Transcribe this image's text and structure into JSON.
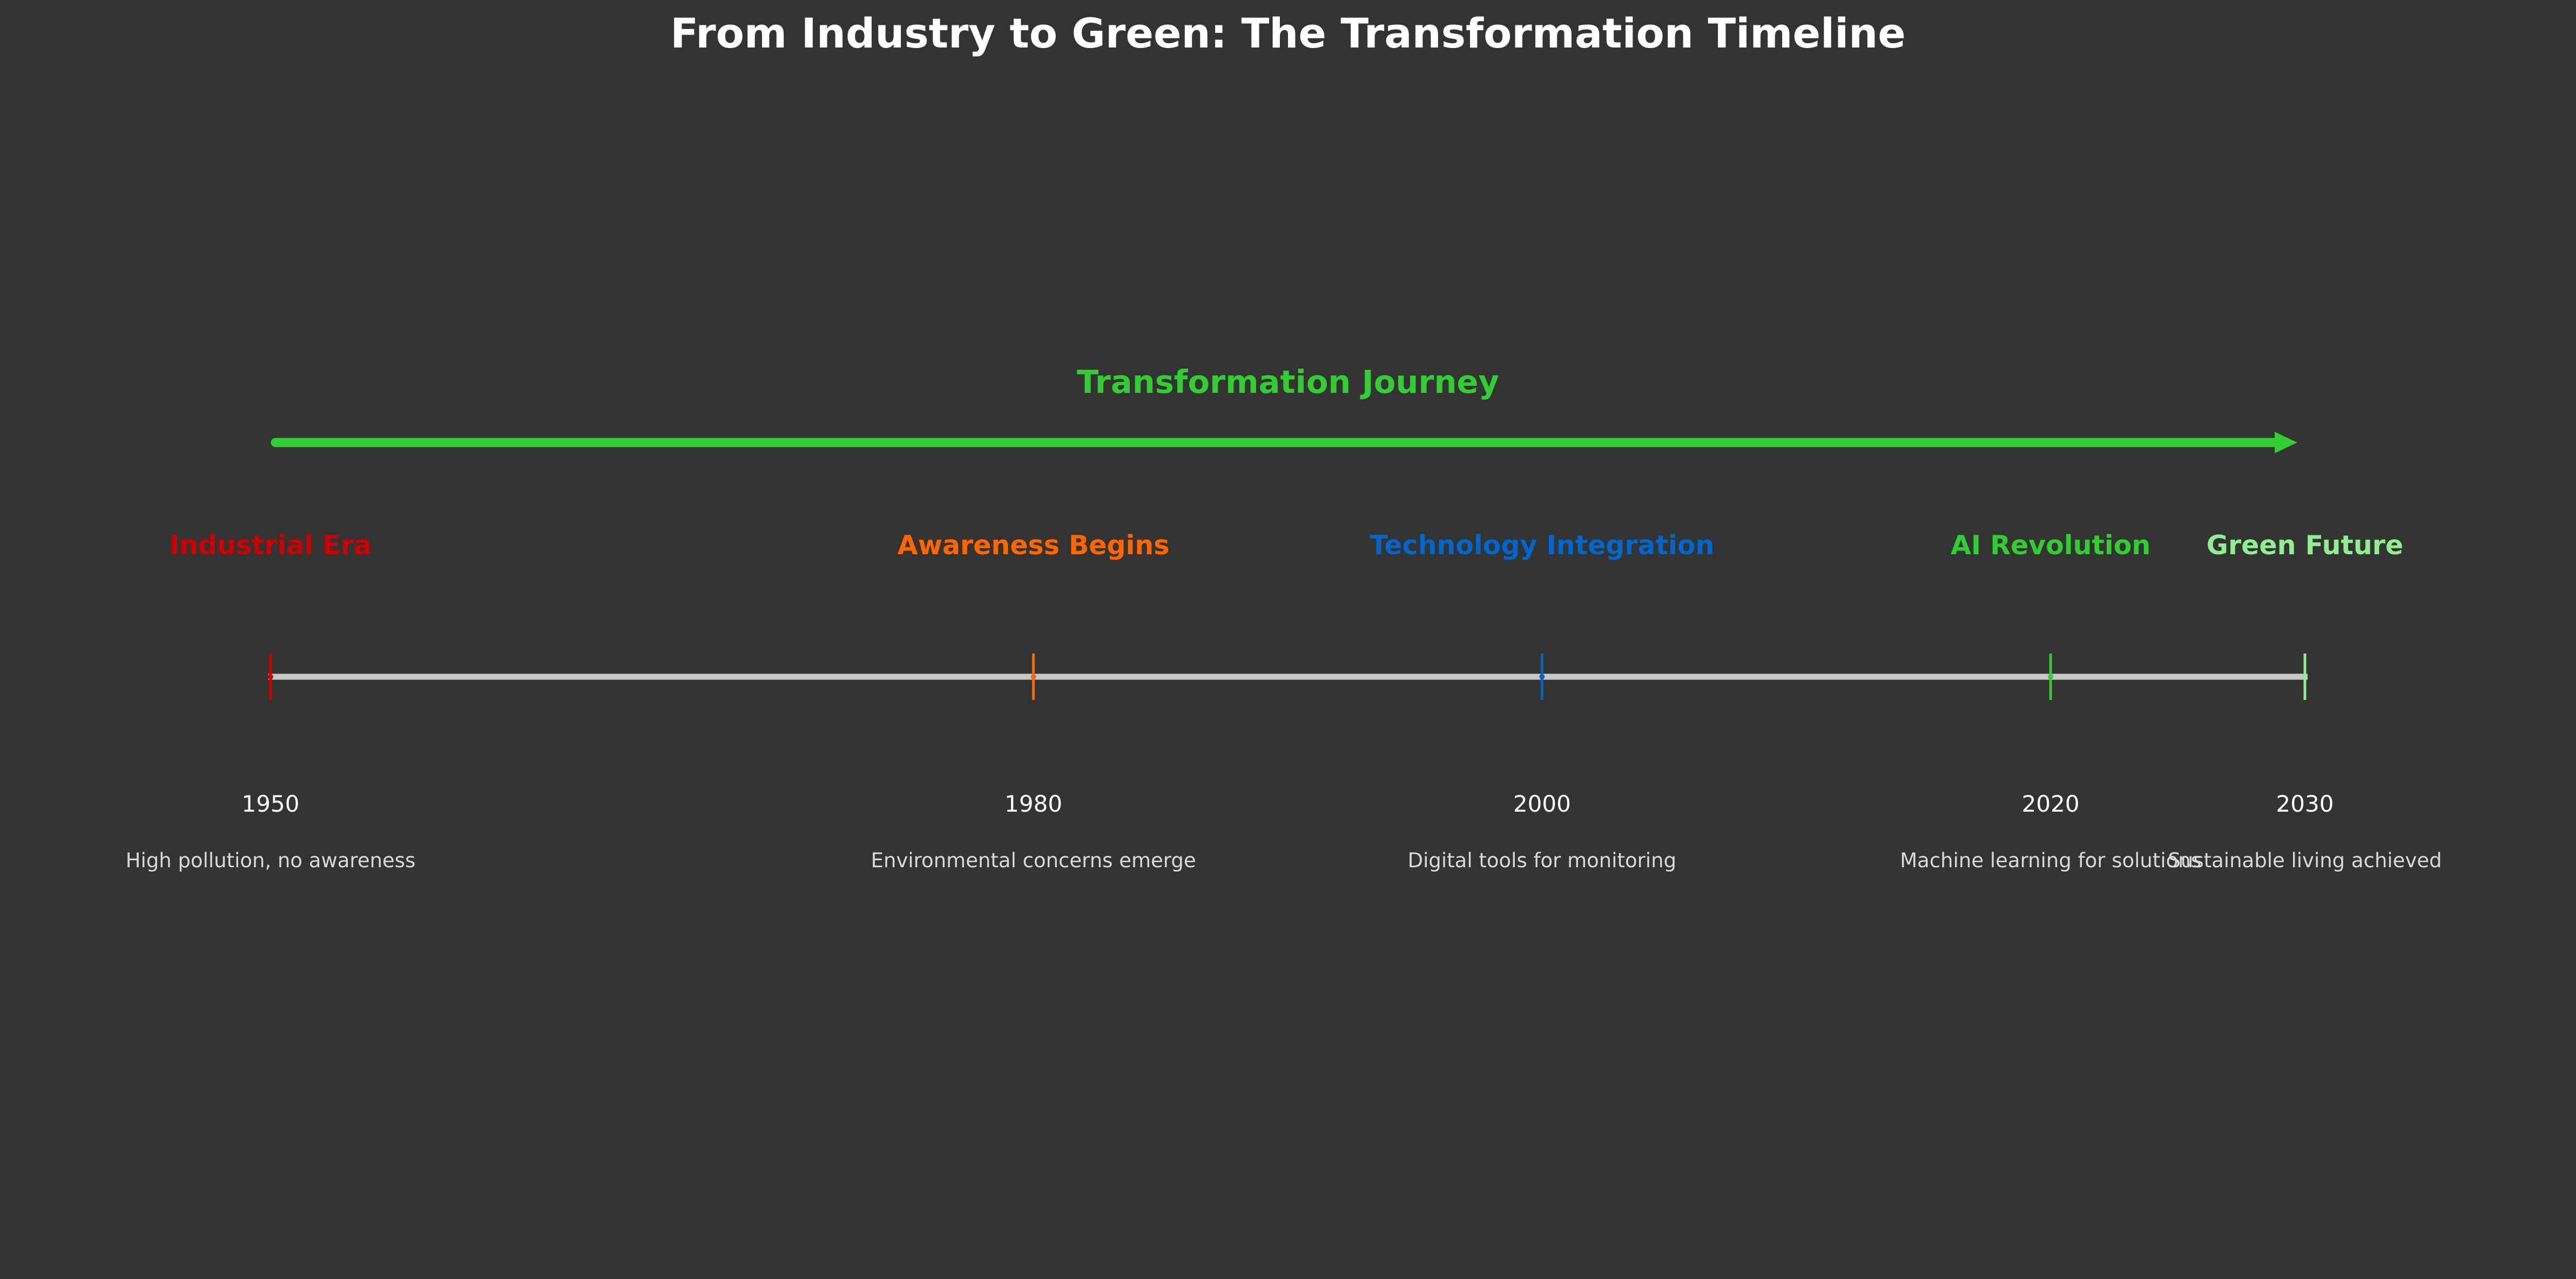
{
  "title": "From Industry to Green: The Transformation Timeline",
  "journey_label": "Transformation Journey",
  "colors": {
    "background": "#333333",
    "timeline": "#c8c8c8",
    "journey_arrow": "#33cc33"
  },
  "events": [
    {
      "year": "1950",
      "title": "Industrial Era",
      "description": "High pollution, no awareness",
      "color": "#cc0000"
    },
    {
      "year": "1980",
      "title": "Awareness Begins",
      "description": "Environmental concerns emerge",
      "color": "#ff6600"
    },
    {
      "year": "2000",
      "title": "Technology Integration",
      "description": "Digital tools for monitoring",
      "color": "#0066cc"
    },
    {
      "year": "2020",
      "title": "AI Revolution",
      "description": "Machine learning for solutions",
      "color": "#33cc33"
    },
    {
      "year": "2030",
      "title": "Green Future",
      "description": "Sustainable living achieved",
      "color": "#90ee90"
    }
  ]
}
